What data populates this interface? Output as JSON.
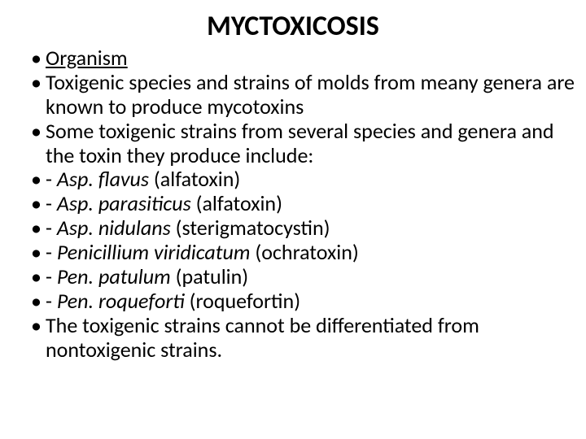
{
  "title": "MYCTOXICOSIS",
  "title_fontsize": 34,
  "body_fontsize": 26,
  "background_color": "#ffffff",
  "text_color": "#000000",
  "bullets": [
    {
      "segments": [
        {
          "text": "Organism",
          "underline": true
        }
      ]
    },
    {
      "segments": [
        {
          "text": "Toxigenic species and strains of molds from meany genera are known to produce mycotoxins"
        }
      ]
    },
    {
      "segments": [
        {
          "text": "Some toxigenic strains from several species and genera and the toxin they produce include:"
        }
      ]
    },
    {
      "segments": [
        {
          "text": "- "
        },
        {
          "text": "Asp. flavus",
          "italic": true
        },
        {
          "text": " (alfatoxin)"
        }
      ]
    },
    {
      "segments": [
        {
          "text": "- "
        },
        {
          "text": "Asp. parasiticus",
          "italic": true
        },
        {
          "text": " (alfatoxin)"
        }
      ]
    },
    {
      "segments": [
        {
          "text": "- "
        },
        {
          "text": "Asp. nidulans",
          "italic": true
        },
        {
          "text": " (sterigmatocystin)"
        }
      ]
    },
    {
      "segments": [
        {
          "text": "- "
        },
        {
          "text": "Penicillium viridicatum",
          "italic": true
        },
        {
          "text": " (ochratoxin)"
        }
      ]
    },
    {
      "segments": [
        {
          "text": "- "
        },
        {
          "text": "Pen. patulum",
          "italic": true
        },
        {
          "text": " (patulin)"
        }
      ]
    },
    {
      "segments": [
        {
          "text": "- "
        },
        {
          "text": "Pen. roqueforti",
          "italic": true
        },
        {
          "text": " (roquefortin)"
        }
      ]
    },
    {
      "segments": [
        {
          "text": "The toxigenic strains cannot be differentiated from nontoxigenic  strains."
        }
      ]
    }
  ]
}
